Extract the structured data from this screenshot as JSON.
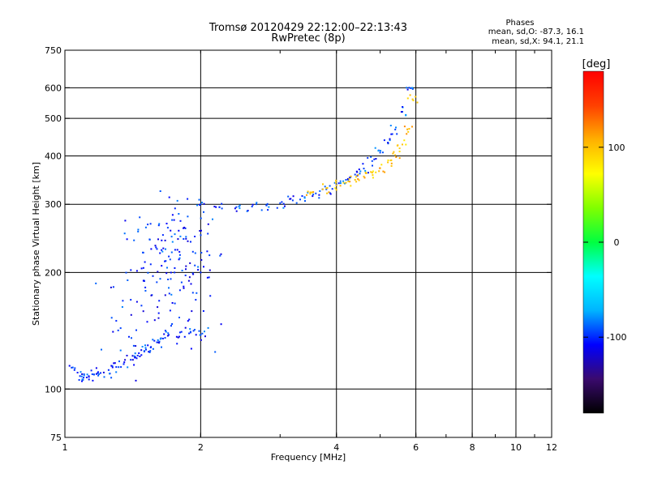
{
  "chart_data": {
    "type": "scatter",
    "title": "Tromsø 20120429 22:12:00–22:13:43",
    "subtitle": "RwPretec (8p)",
    "xlabel": "Frequency [MHz]",
    "ylabel": "Stationary phase Virtual Height [km]",
    "x_scale": "log",
    "y_scale": "log",
    "xlim": [
      1,
      12
    ],
    "ylim": [
      75,
      750
    ],
    "x_ticks": [
      1,
      2,
      4,
      6,
      8,
      10,
      12
    ],
    "y_ticks": [
      75,
      100,
      200,
      300,
      400,
      500,
      600,
      750
    ],
    "x_grid": [
      2,
      4,
      6,
      8,
      10
    ],
    "y_grid": [
      100,
      200,
      300,
      400,
      500,
      600
    ],
    "phases_header": "Phases",
    "phases_o": "mean, sd,O: -87.3, 16.1",
    "phases_x": "mean, sd,X: 94.1, 21.1",
    "colorbar": {
      "label": "[deg]",
      "range": [
        -180,
        180
      ],
      "ticks": [
        100,
        0,
        -100
      ],
      "stops": [
        "#000000",
        "#3a0a6e",
        "#0000ff",
        "#00b4ff",
        "#00ffff",
        "#00ff40",
        "#80ff00",
        "#ffff00",
        "#ffb000",
        "#ff4000",
        "#ff0000"
      ]
    },
    "series": [
      {
        "trace": "o-base-layer",
        "x": [
          1.05,
          1.08,
          1.1,
          1.13,
          1.16,
          1.2,
          1.25,
          1.3,
          1.35,
          1.4,
          1.45,
          1.5,
          1.55,
          1.6,
          1.65,
          1.7,
          1.8,
          1.9,
          2.0
        ],
        "y": [
          112,
          108,
          107,
          108,
          109,
          110,
          112,
          114,
          116,
          119,
          122,
          125,
          128,
          132,
          135,
          138,
          140,
          140,
          138
        ],
        "phase": -100
      },
      {
        "trace": "o-cloud",
        "x": [
          1.3,
          1.4,
          1.5,
          1.55,
          1.6,
          1.65,
          1.7,
          1.75,
          1.8,
          1.85,
          1.9,
          1.95,
          2.0
        ],
        "y": [
          150,
          170,
          190,
          210,
          230,
          250,
          220,
          200,
          180,
          260,
          240,
          170,
          200
        ],
        "phase": -100
      },
      {
        "trace": "o-F-trace",
        "x": [
          2.0,
          2.2,
          2.4,
          2.6,
          2.8,
          3.0,
          3.2,
          3.4,
          3.6,
          3.8,
          4.0,
          4.2,
          4.4,
          4.6,
          4.8,
          5.0,
          5.2,
          5.4,
          5.6,
          5.8
        ],
        "y": [
          300,
          295,
          295,
          296,
          298,
          302,
          307,
          313,
          320,
          328,
          337,
          347,
          358,
          371,
          388,
          408,
          433,
          468,
          520,
          600
        ],
        "phase": -95
      },
      {
        "trace": "x-F-trace",
        "x": [
          3.5,
          3.8,
          4.0,
          4.2,
          4.4,
          4.6,
          4.8,
          5.0,
          5.2,
          5.4,
          5.6,
          5.8,
          5.9
        ],
        "y": [
          322,
          330,
          336,
          341,
          347,
          354,
          362,
          372,
          385,
          402,
          428,
          470,
          560
        ],
        "phase": 100
      }
    ]
  }
}
